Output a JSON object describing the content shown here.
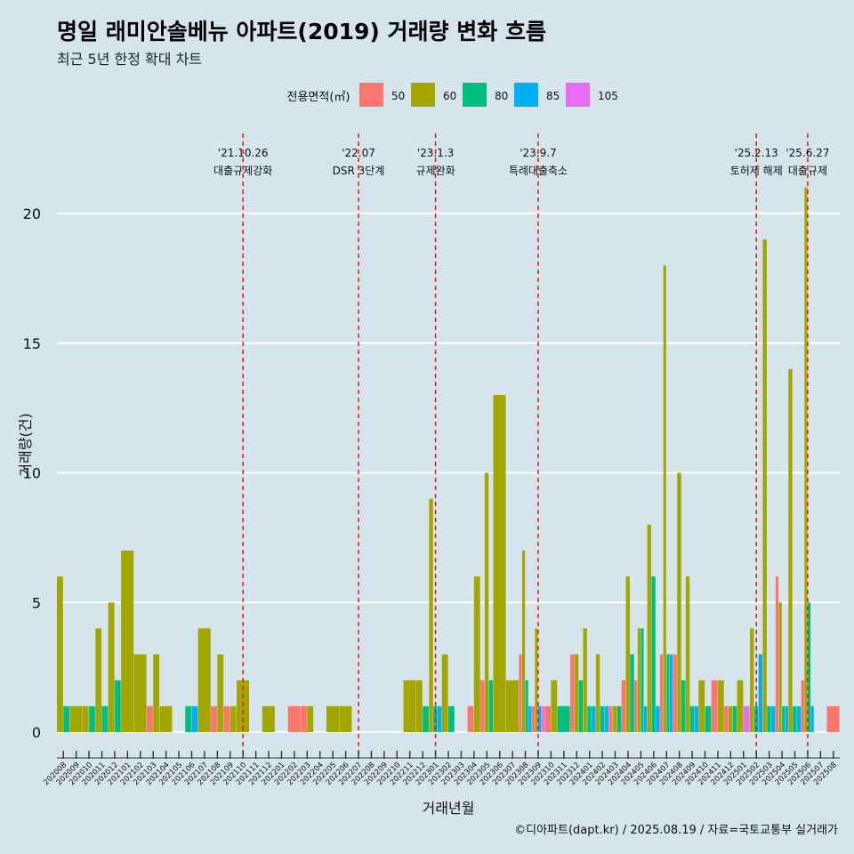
{
  "title": "명일 래미안솔베뉴 아파트(2019) 거래량 변화 흐름",
  "subtitle": "최근 5년 한정 확대 차트",
  "caption": "©디아파트(dapt.kr) / 2025.08.19 / 자료=국토교통부 실거래가",
  "chart_data": {
    "type": "bar",
    "xlabel": "거래년월",
    "ylabel": "거래량(건)",
    "ylim": [
      0,
      21
    ],
    "yticks": [
      0,
      5,
      10,
      15,
      20
    ],
    "grid": true,
    "legend": {
      "title": "전용면적(㎡)",
      "position": "top",
      "entries": [
        "50",
        "60",
        "80",
        "85",
        "105"
      ]
    },
    "colors": {
      "50": "#F8766D",
      "60": "#A3A500",
      "80": "#00BF7D",
      "85": "#00B0F6",
      "105": "#E76BF3"
    },
    "categories": [
      "202008",
      "202009",
      "202010",
      "202011",
      "202012",
      "202101",
      "202102",
      "202103",
      "202104",
      "202105",
      "202106",
      "202107",
      "202108",
      "202109",
      "202110",
      "202111",
      "202112",
      "202201",
      "202202",
      "202203",
      "202204",
      "202205",
      "202206",
      "202207",
      "202208",
      "202209",
      "202210",
      "202211",
      "202212",
      "202301",
      "202302",
      "202303",
      "202304",
      "202305",
      "202306",
      "202307",
      "202308",
      "202309",
      "202310",
      "202311",
      "202312",
      "202401",
      "202402",
      "202403",
      "202404",
      "202405",
      "202406",
      "202407",
      "202408",
      "202409",
      "202410",
      "202411",
      "202412",
      "202501",
      "202502",
      "202503",
      "202504",
      "202505",
      "202506",
      "202507",
      "202508"
    ],
    "series": [
      {
        "name": "50",
        "values": [
          0,
          0,
          0,
          0,
          0,
          0,
          0,
          1,
          0,
          0,
          0,
          0,
          1,
          1,
          0,
          0,
          0,
          0,
          1,
          1,
          0,
          0,
          0,
          0,
          0,
          0,
          0,
          0,
          0,
          0,
          0,
          0,
          1,
          2,
          0,
          0,
          3,
          1,
          1,
          0,
          3,
          0,
          0,
          1,
          2,
          2,
          0,
          3,
          3,
          0,
          0,
          2,
          1,
          0,
          0,
          0,
          6,
          0,
          2,
          0,
          1
        ]
      },
      {
        "name": "60",
        "values": [
          6,
          1,
          1,
          4,
          5,
          7,
          3,
          3,
          1,
          0,
          0,
          4,
          3,
          1,
          2,
          0,
          1,
          0,
          0,
          1,
          0,
          1,
          1,
          0,
          0,
          0,
          0,
          2,
          2,
          9,
          3,
          0,
          6,
          10,
          13,
          2,
          7,
          4,
          2,
          0,
          3,
          4,
          3,
          1,
          6,
          4,
          8,
          18,
          10,
          6,
          2,
          2,
          1,
          2,
          4,
          19,
          5,
          14,
          21,
          0,
          0
        ]
      },
      {
        "name": "80",
        "values": [
          1,
          0,
          1,
          1,
          2,
          0,
          0,
          0,
          0,
          0,
          1,
          0,
          0,
          0,
          0,
          0,
          0,
          0,
          0,
          0,
          0,
          0,
          0,
          0,
          0,
          0,
          0,
          0,
          1,
          1,
          1,
          0,
          0,
          2,
          0,
          0,
          2,
          0,
          0,
          1,
          2,
          1,
          1,
          1,
          3,
          4,
          6,
          3,
          2,
          1,
          1,
          0,
          1,
          0,
          1,
          1,
          1,
          1,
          5,
          0,
          0
        ]
      },
      {
        "name": "85",
        "values": [
          0,
          0,
          0,
          0,
          0,
          0,
          0,
          0,
          0,
          0,
          1,
          0,
          0,
          0,
          0,
          0,
          0,
          0,
          0,
          0,
          0,
          0,
          0,
          0,
          0,
          0,
          0,
          0,
          0,
          1,
          0,
          0,
          0,
          0,
          0,
          0,
          1,
          1,
          0,
          0,
          0,
          1,
          1,
          0,
          0,
          1,
          1,
          3,
          0,
          1,
          0,
          0,
          0,
          0,
          3,
          1,
          1,
          1,
          1,
          0,
          0
        ]
      },
      {
        "name": "105",
        "values": [
          0,
          0,
          0,
          0,
          0,
          0,
          0,
          0,
          0,
          0,
          0,
          0,
          0,
          0,
          0,
          0,
          0,
          0,
          0,
          0,
          0,
          0,
          0,
          0,
          0,
          0,
          0,
          0,
          0,
          0,
          0,
          0,
          0,
          0,
          0,
          0,
          0,
          1,
          0,
          0,
          0,
          0,
          0,
          0,
          0,
          0,
          0,
          0,
          0,
          0,
          0,
          0,
          0,
          1,
          0,
          0,
          0,
          0,
          0,
          0,
          0
        ]
      }
    ],
    "annotations": [
      {
        "x": "202110",
        "date": "'21.10.26",
        "label": "대출규제강화"
      },
      {
        "x": "202207",
        "date": "'22.07",
        "label": "DSR 3단계"
      },
      {
        "x": "202301",
        "date": "'23.1.3",
        "label": "규제완화"
      },
      {
        "x": "202309",
        "date": "'23.9.7",
        "label": "특례대출축소"
      },
      {
        "x": "202502",
        "date": "'25.2.13",
        "label": "토허제 해제"
      },
      {
        "x": "202506",
        "date": "'25.6.27",
        "label": "대출규제"
      }
    ]
  }
}
